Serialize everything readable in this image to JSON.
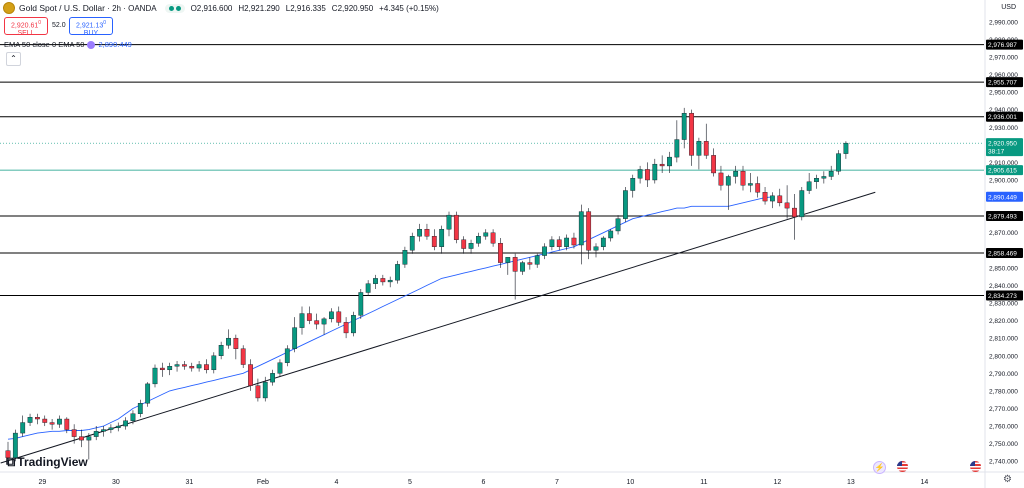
{
  "header": {
    "symbol": "Gold Spot / U.S. Dollar",
    "interval": "2h",
    "exchange": "OANDA",
    "open": "O2,916.600",
    "high": "H2,921.290",
    "low": "L2,916.335",
    "close": "C2,920.950",
    "change": "+4.345 (+0.15%)"
  },
  "trade": {
    "sell_price": "2,920.61",
    "sell_sup": "0",
    "sell_label": "SELL",
    "spread": "52.0",
    "buy_price": "2,921.13",
    "buy_sup": "0",
    "buy_label": "BUY"
  },
  "indicator": {
    "label": "EMA 50 close 0 EMA 50",
    "value": "2,890.449"
  },
  "axis_currency": "USD",
  "branding": "TradingView",
  "colors": {
    "up": "#089981",
    "down": "#f23645",
    "ema": "#2962ff",
    "level": "#000000"
  },
  "chart_data": {
    "type": "candlestick",
    "instrument": "Gold Spot / U.S. Dollar",
    "timeframe": "2h",
    "ylim": [
      2735,
      2995
    ],
    "y_ticks": [
      2740,
      2750,
      2760,
      2770,
      2780,
      2790,
      2800,
      2810,
      2820,
      2830,
      2840,
      2850,
      2860,
      2870,
      2880,
      2890,
      2900,
      2910,
      2920,
      2930,
      2940,
      2950,
      2960,
      2970,
      2980,
      2990
    ],
    "y_tick_labels": [
      "2,740.000",
      "2,750.000",
      "2,760.000",
      "2,770.000",
      "2,780.000",
      "2,790.000",
      "2,800.000",
      "2,810.000",
      "2,820.000",
      "2,830.000",
      "2,840.000",
      "2,850.000",
      "2,860.000",
      "2,870.000",
      "2,880.000",
      "2,890.000",
      "2,900.000",
      "2,910.000",
      "2,920.000",
      "2,930.000",
      "2,940.000",
      "2,950.000",
      "2,960.000",
      "2,970.000",
      "2,980.000",
      "2,990.000"
    ],
    "x_tick_labels": [
      "29",
      "30",
      "31",
      "Feb",
      "4",
      "5",
      "6",
      "7",
      "10",
      "11",
      "12",
      "13",
      "14"
    ],
    "levels": [
      {
        "value": 2976.987,
        "label": "2,976.987"
      },
      {
        "value": 2955.707,
        "label": "2,955.707"
      },
      {
        "value": 2936.001,
        "label": "2,936.001"
      },
      {
        "value": 2879.493,
        "label": "2,879.493"
      },
      {
        "value": 2858.469,
        "label": "2,858.469"
      },
      {
        "value": 2834.273,
        "label": "2,834.273"
      }
    ],
    "horizontal_line": {
      "value": 2905.615,
      "label": "2,905.615",
      "color": "#089981"
    },
    "current_price": {
      "value": 2920.95,
      "label": "2,920.950",
      "countdown": "38:17"
    },
    "ema": {
      "name": "EMA 50",
      "value": 2890.449,
      "label": "2,890.449",
      "points": [
        [
          0,
          2752.5
        ],
        [
          1,
          2753
        ],
        [
          2,
          2754
        ],
        [
          3,
          2755
        ],
        [
          4,
          2756
        ],
        [
          5,
          2756.5
        ],
        [
          6,
          2757
        ],
        [
          7,
          2757
        ],
        [
          8,
          2757.5
        ],
        [
          9,
          2757.5
        ],
        [
          10,
          2757.5
        ],
        [
          11,
          2758
        ],
        [
          12,
          2759
        ],
        [
          13,
          2760
        ],
        [
          14,
          2762
        ],
        [
          15,
          2764
        ],
        [
          16,
          2767
        ],
        [
          17,
          2770
        ],
        [
          18,
          2772
        ],
        [
          19,
          2774
        ],
        [
          20,
          2776
        ],
        [
          21,
          2778
        ],
        [
          22,
          2780
        ],
        [
          23,
          2781
        ],
        [
          24,
          2782
        ],
        [
          25,
          2783
        ],
        [
          26,
          2784
        ],
        [
          27,
          2785
        ],
        [
          28,
          2786
        ],
        [
          29,
          2787
        ],
        [
          30,
          2788
        ],
        [
          31,
          2789
        ],
        [
          32,
          2790
        ],
        [
          33,
          2792
        ],
        [
          34,
          2794
        ],
        [
          35,
          2796
        ],
        [
          36,
          2798
        ],
        [
          37,
          2800
        ],
        [
          38,
          2802
        ],
        [
          39,
          2804
        ],
        [
          40,
          2806
        ],
        [
          41,
          2808
        ],
        [
          42,
          2810
        ],
        [
          43,
          2812
        ],
        [
          44,
          2814
        ],
        [
          45,
          2816
        ],
        [
          46,
          2818
        ],
        [
          47,
          2820
        ],
        [
          48,
          2822
        ],
        [
          49,
          2824
        ],
        [
          50,
          2826
        ],
        [
          51,
          2828
        ],
        [
          52,
          2830
        ],
        [
          53,
          2832
        ],
        [
          54,
          2834
        ],
        [
          55,
          2836
        ],
        [
          56,
          2838
        ],
        [
          57,
          2840
        ],
        [
          58,
          2842
        ],
        [
          59,
          2844
        ],
        [
          60,
          2845
        ],
        [
          61,
          2846
        ],
        [
          62,
          2847
        ],
        [
          63,
          2848
        ],
        [
          64,
          2849
        ],
        [
          65,
          2850
        ],
        [
          66,
          2851
        ],
        [
          67,
          2852
        ],
        [
          68,
          2853
        ],
        [
          69,
          2854
        ],
        [
          70,
          2855
        ],
        [
          71,
          2856
        ],
        [
          72,
          2857
        ],
        [
          73,
          2858
        ],
        [
          74,
          2859
        ],
        [
          75,
          2860
        ],
        [
          76,
          2861
        ],
        [
          77,
          2862
        ],
        [
          78,
          2864
        ],
        [
          79,
          2866
        ],
        [
          80,
          2868
        ],
        [
          81,
          2870
        ],
        [
          82,
          2872
        ],
        [
          83,
          2874
        ],
        [
          84,
          2876
        ],
        [
          85,
          2878
        ],
        [
          86,
          2879
        ],
        [
          87,
          2880
        ],
        [
          88,
          2881
        ],
        [
          89,
          2882
        ],
        [
          90,
          2883
        ],
        [
          91,
          2884
        ],
        [
          92,
          2884
        ],
        [
          93,
          2885
        ],
        [
          94,
          2885
        ],
        [
          95,
          2885
        ],
        [
          96,
          2885
        ],
        [
          97,
          2885
        ],
        [
          98,
          2885
        ],
        [
          99,
          2886
        ],
        [
          100,
          2887
        ],
        [
          101,
          2888
        ],
        [
          102,
          2889
        ],
        [
          103,
          2890
        ],
        [
          104,
          2890.4
        ]
      ]
    },
    "trendline": {
      "from": [
        -1,
        2739
      ],
      "to": [
        118,
        2893
      ]
    },
    "candles": [
      {
        "o": 2746,
        "h": 2751,
        "l": 2738,
        "c": 2742
      },
      {
        "o": 2742,
        "h": 2758,
        "l": 2740,
        "c": 2756
      },
      {
        "o": 2756,
        "h": 2766,
        "l": 2754,
        "c": 2762
      },
      {
        "o": 2762,
        "h": 2767,
        "l": 2760,
        "c": 2765
      },
      {
        "o": 2765,
        "h": 2767,
        "l": 2761,
        "c": 2764
      },
      {
        "o": 2764,
        "h": 2766,
        "l": 2760,
        "c": 2762
      },
      {
        "o": 2762,
        "h": 2764,
        "l": 2758,
        "c": 2761
      },
      {
        "o": 2761,
        "h": 2766,
        "l": 2759,
        "c": 2764
      },
      {
        "o": 2764,
        "h": 2765,
        "l": 2756,
        "c": 2758
      },
      {
        "o": 2758,
        "h": 2761,
        "l": 2750,
        "c": 2754
      },
      {
        "o": 2754,
        "h": 2758,
        "l": 2748,
        "c": 2752
      },
      {
        "o": 2752,
        "h": 2756,
        "l": 2741,
        "c": 2754
      },
      {
        "o": 2754,
        "h": 2760,
        "l": 2752,
        "c": 2757
      },
      {
        "o": 2757,
        "h": 2760,
        "l": 2754,
        "c": 2758
      },
      {
        "o": 2758,
        "h": 2761,
        "l": 2756,
        "c": 2759
      },
      {
        "o": 2759,
        "h": 2762,
        "l": 2757,
        "c": 2760
      },
      {
        "o": 2760,
        "h": 2765,
        "l": 2758,
        "c": 2763
      },
      {
        "o": 2763,
        "h": 2769,
        "l": 2761,
        "c": 2767
      },
      {
        "o": 2767,
        "h": 2775,
        "l": 2765,
        "c": 2773
      },
      {
        "o": 2773,
        "h": 2785,
        "l": 2771,
        "c": 2784
      },
      {
        "o": 2784,
        "h": 2795,
        "l": 2782,
        "c": 2793
      },
      {
        "o": 2793,
        "h": 2796,
        "l": 2788,
        "c": 2792
      },
      {
        "o": 2792,
        "h": 2796,
        "l": 2789,
        "c": 2794
      },
      {
        "o": 2794,
        "h": 2797,
        "l": 2791,
        "c": 2795
      },
      {
        "o": 2795,
        "h": 2797,
        "l": 2792,
        "c": 2794
      },
      {
        "o": 2794,
        "h": 2796,
        "l": 2791,
        "c": 2793
      },
      {
        "o": 2793,
        "h": 2797,
        "l": 2791,
        "c": 2795
      },
      {
        "o": 2795,
        "h": 2798,
        "l": 2790,
        "c": 2792
      },
      {
        "o": 2792,
        "h": 2802,
        "l": 2790,
        "c": 2800
      },
      {
        "o": 2800,
        "h": 2808,
        "l": 2798,
        "c": 2806
      },
      {
        "o": 2806,
        "h": 2815,
        "l": 2804,
        "c": 2810
      },
      {
        "o": 2810,
        "h": 2812,
        "l": 2798,
        "c": 2804
      },
      {
        "o": 2804,
        "h": 2806,
        "l": 2793,
        "c": 2795
      },
      {
        "o": 2795,
        "h": 2798,
        "l": 2780,
        "c": 2783
      },
      {
        "o": 2783,
        "h": 2787,
        "l": 2774,
        "c": 2776
      },
      {
        "o": 2776,
        "h": 2788,
        "l": 2774,
        "c": 2785
      },
      {
        "o": 2785,
        "h": 2792,
        "l": 2783,
        "c": 2790
      },
      {
        "o": 2790,
        "h": 2798,
        "l": 2788,
        "c": 2796
      },
      {
        "o": 2796,
        "h": 2806,
        "l": 2794,
        "c": 2804
      },
      {
        "o": 2804,
        "h": 2822,
        "l": 2802,
        "c": 2816
      },
      {
        "o": 2816,
        "h": 2828,
        "l": 2812,
        "c": 2824
      },
      {
        "o": 2824,
        "h": 2828,
        "l": 2818,
        "c": 2820
      },
      {
        "o": 2820,
        "h": 2824,
        "l": 2815,
        "c": 2818
      },
      {
        "o": 2818,
        "h": 2822,
        "l": 2812,
        "c": 2821
      },
      {
        "o": 2821,
        "h": 2827,
        "l": 2819,
        "c": 2825
      },
      {
        "o": 2825,
        "h": 2828,
        "l": 2817,
        "c": 2819
      },
      {
        "o": 2819,
        "h": 2822,
        "l": 2810,
        "c": 2813
      },
      {
        "o": 2813,
        "h": 2825,
        "l": 2811,
        "c": 2823
      },
      {
        "o": 2823,
        "h": 2838,
        "l": 2821,
        "c": 2836
      },
      {
        "o": 2836,
        "h": 2843,
        "l": 2834,
        "c": 2841
      },
      {
        "o": 2841,
        "h": 2846,
        "l": 2838,
        "c": 2844
      },
      {
        "o": 2844,
        "h": 2846,
        "l": 2840,
        "c": 2842
      },
      {
        "o": 2842,
        "h": 2845,
        "l": 2839,
        "c": 2843
      },
      {
        "o": 2843,
        "h": 2854,
        "l": 2841,
        "c": 2852
      },
      {
        "o": 2852,
        "h": 2862,
        "l": 2850,
        "c": 2860
      },
      {
        "o": 2860,
        "h": 2870,
        "l": 2858,
        "c": 2868
      },
      {
        "o": 2868,
        "h": 2875,
        "l": 2865,
        "c": 2872
      },
      {
        "o": 2872,
        "h": 2875,
        "l": 2866,
        "c": 2868
      },
      {
        "o": 2868,
        "h": 2872,
        "l": 2860,
        "c": 2862
      },
      {
        "o": 2862,
        "h": 2874,
        "l": 2858,
        "c": 2872
      },
      {
        "o": 2872,
        "h": 2882,
        "l": 2868,
        "c": 2880
      },
      {
        "o": 2880,
        "h": 2882,
        "l": 2864,
        "c": 2866
      },
      {
        "o": 2866,
        "h": 2868,
        "l": 2858,
        "c": 2861
      },
      {
        "o": 2861,
        "h": 2866,
        "l": 2858,
        "c": 2864
      },
      {
        "o": 2864,
        "h": 2870,
        "l": 2862,
        "c": 2868
      },
      {
        "o": 2868,
        "h": 2872,
        "l": 2866,
        "c": 2870
      },
      {
        "o": 2870,
        "h": 2872,
        "l": 2862,
        "c": 2864
      },
      {
        "o": 2864,
        "h": 2867,
        "l": 2850,
        "c": 2853
      },
      {
        "o": 2853,
        "h": 2856,
        "l": 2846,
        "c": 2856
      },
      {
        "o": 2856,
        "h": 2858,
        "l": 2832,
        "c": 2848
      },
      {
        "o": 2848,
        "h": 2854,
        "l": 2846,
        "c": 2853
      },
      {
        "o": 2853,
        "h": 2856,
        "l": 2849,
        "c": 2852
      },
      {
        "o": 2852,
        "h": 2858,
        "l": 2850,
        "c": 2857
      },
      {
        "o": 2857,
        "h": 2864,
        "l": 2855,
        "c": 2862
      },
      {
        "o": 2862,
        "h": 2868,
        "l": 2860,
        "c": 2866
      },
      {
        "o": 2866,
        "h": 2868,
        "l": 2860,
        "c": 2862
      },
      {
        "o": 2862,
        "h": 2869,
        "l": 2860,
        "c": 2867
      },
      {
        "o": 2867,
        "h": 2870,
        "l": 2861,
        "c": 2863
      },
      {
        "o": 2863,
        "h": 2886,
        "l": 2852,
        "c": 2882
      },
      {
        "o": 2882,
        "h": 2884,
        "l": 2855,
        "c": 2860
      },
      {
        "o": 2860,
        "h": 2864,
        "l": 2856,
        "c": 2862
      },
      {
        "o": 2862,
        "h": 2868,
        "l": 2860,
        "c": 2867
      },
      {
        "o": 2867,
        "h": 2872,
        "l": 2865,
        "c": 2871
      },
      {
        "o": 2871,
        "h": 2880,
        "l": 2869,
        "c": 2878
      },
      {
        "o": 2878,
        "h": 2896,
        "l": 2876,
        "c": 2894
      },
      {
        "o": 2894,
        "h": 2903,
        "l": 2890,
        "c": 2901
      },
      {
        "o": 2901,
        "h": 2908,
        "l": 2898,
        "c": 2906
      },
      {
        "o": 2906,
        "h": 2910,
        "l": 2896,
        "c": 2900
      },
      {
        "o": 2900,
        "h": 2912,
        "l": 2898,
        "c": 2909
      },
      {
        "o": 2909,
        "h": 2914,
        "l": 2904,
        "c": 2908
      },
      {
        "o": 2908,
        "h": 2916,
        "l": 2904,
        "c": 2913
      },
      {
        "o": 2913,
        "h": 2934,
        "l": 2910,
        "c": 2923
      },
      {
        "o": 2923,
        "h": 2941,
        "l": 2918,
        "c": 2938
      },
      {
        "o": 2938,
        "h": 2940,
        "l": 2908,
        "c": 2914
      },
      {
        "o": 2914,
        "h": 2924,
        "l": 2906,
        "c": 2922
      },
      {
        "o": 2922,
        "h": 2932,
        "l": 2912,
        "c": 2914
      },
      {
        "o": 2914,
        "h": 2918,
        "l": 2902,
        "c": 2904
      },
      {
        "o": 2904,
        "h": 2908,
        "l": 2894,
        "c": 2897
      },
      {
        "o": 2897,
        "h": 2903,
        "l": 2883,
        "c": 2902
      },
      {
        "o": 2902,
        "h": 2908,
        "l": 2898,
        "c": 2905
      },
      {
        "o": 2905,
        "h": 2908,
        "l": 2894,
        "c": 2897
      },
      {
        "o": 2897,
        "h": 2904,
        "l": 2893,
        "c": 2898
      },
      {
        "o": 2898,
        "h": 2902,
        "l": 2890,
        "c": 2893
      },
      {
        "o": 2893,
        "h": 2896,
        "l": 2886,
        "c": 2888
      },
      {
        "o": 2888,
        "h": 2893,
        "l": 2884,
        "c": 2891
      },
      {
        "o": 2891,
        "h": 2895,
        "l": 2885,
        "c": 2887
      },
      {
        "o": 2887,
        "h": 2897,
        "l": 2878,
        "c": 2884
      },
      {
        "o": 2884,
        "h": 2892,
        "l": 2866,
        "c": 2879
      },
      {
        "o": 2879,
        "h": 2896,
        "l": 2877,
        "c": 2894
      },
      {
        "o": 2894,
        "h": 2904,
        "l": 2892,
        "c": 2899
      },
      {
        "o": 2899,
        "h": 2903,
        "l": 2895,
        "c": 2901
      },
      {
        "o": 2901,
        "h": 2905,
        "l": 2898,
        "c": 2902
      },
      {
        "o": 2902,
        "h": 2908,
        "l": 2900,
        "c": 2905
      },
      {
        "o": 2905,
        "h": 2917,
        "l": 2903,
        "c": 2915
      },
      {
        "o": 2915,
        "h": 2922,
        "l": 2912,
        "c": 2920.95
      }
    ]
  }
}
